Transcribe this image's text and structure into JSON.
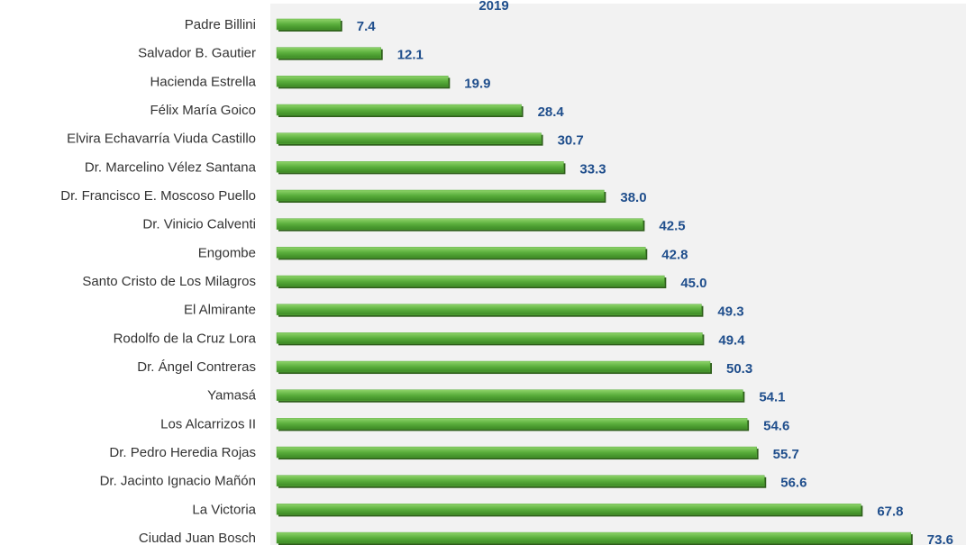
{
  "chart_data": {
    "type": "bar",
    "orientation": "horizontal",
    "title": "2019",
    "categories": [
      "Padre Billini",
      "Salvador B. Gautier",
      "Hacienda Estrella",
      "Félix María Goico",
      "Elvira Echavarría Viuda Castillo",
      "Dr. Marcelino Vélez Santana",
      "Dr. Francisco E. Moscoso Puello",
      "Dr. Vinicio Calventi",
      "Engombe",
      "Santo Cristo de Los Milagros",
      "El Almirante",
      "Rodolfo de la Cruz Lora",
      "Dr. Ángel Contreras",
      "Yamasá",
      "Los Alcarrizos II",
      "Dr. Pedro Heredia Rojas",
      "Dr. Jacinto Ignacio Mañón",
      "La Victoria",
      "Ciudad Juan Bosch"
    ],
    "values": [
      7.4,
      12.1,
      19.9,
      28.4,
      30.7,
      33.3,
      38.0,
      42.5,
      42.8,
      45.0,
      49.3,
      49.4,
      50.3,
      54.1,
      54.6,
      55.7,
      56.6,
      67.8,
      73.6
    ],
    "value_labels": [
      "7.4",
      "12.1",
      "19.9",
      "28.4",
      "30.7",
      "33.3",
      "38.0",
      "42.5",
      "42.8",
      "45.0",
      "49.3",
      "49.4",
      "50.3",
      "54.1",
      "54.6",
      "55.7",
      "56.6",
      "67.8",
      "73.6"
    ],
    "color": "#5aae3c",
    "xlim": [
      0,
      80
    ]
  }
}
